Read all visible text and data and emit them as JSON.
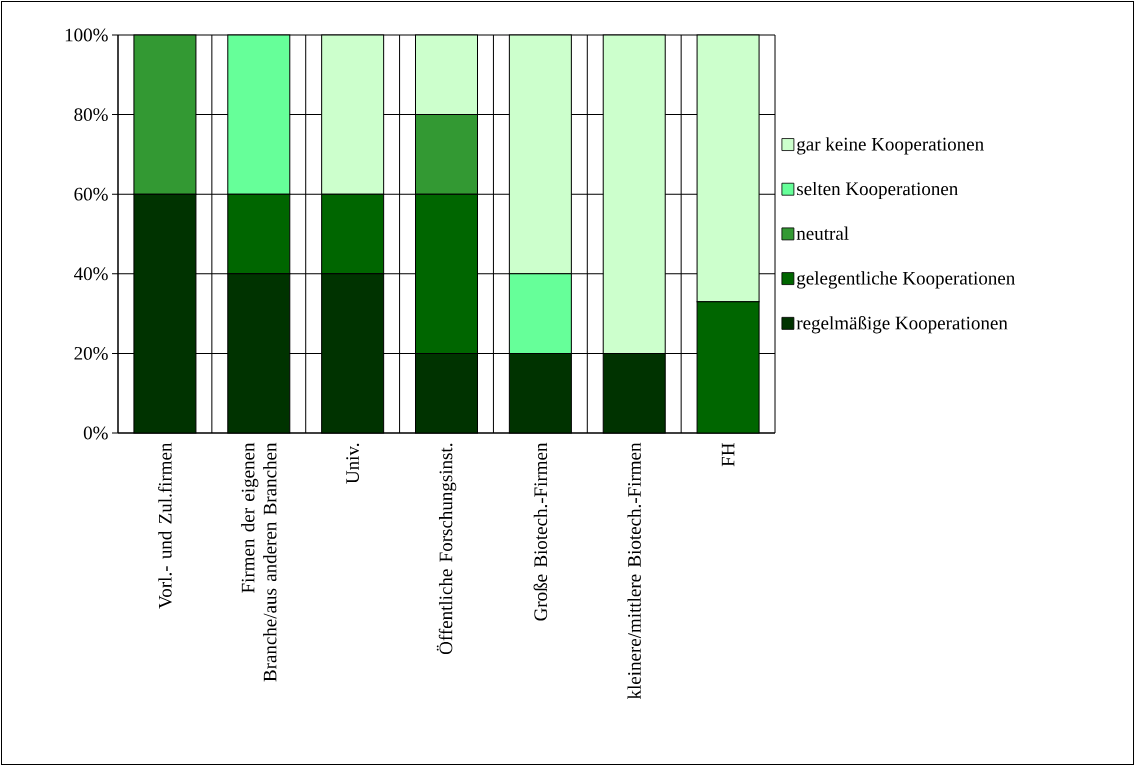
{
  "chart_data": {
    "type": "bar",
    "stacked": true,
    "categories": [
      "Vorl.- und Zul.firmen",
      "Firmen der eigenen Branche/aus anderen Branchen",
      "Univ.",
      "Öffentliche Forschungsinst.",
      "Große Biotech.-Firmen",
      "kleinere/mittlere Biotech.-Firmen",
      "FH"
    ],
    "series": [
      {
        "name": "regelmäßige Kooperationen",
        "color": "#003300",
        "values": [
          60,
          40,
          40,
          20,
          20,
          20,
          0
        ]
      },
      {
        "name": "gelegentliche Kooperationen",
        "color": "#006600",
        "values": [
          0,
          20,
          20,
          40,
          0,
          0,
          33
        ]
      },
      {
        "name": "neutral",
        "color": "#339933",
        "values": [
          40,
          0,
          0,
          20,
          0,
          0,
          0
        ]
      },
      {
        "name": "selten Kooperationen",
        "color": "#66ff99",
        "values": [
          0,
          40,
          0,
          0,
          20,
          0,
          0
        ]
      },
      {
        "name": "gar keine Kooperationen",
        "color": "#ccffcc",
        "values": [
          0,
          0,
          40,
          20,
          60,
          80,
          67
        ]
      }
    ],
    "ylim": [
      0,
      100
    ],
    "yticks": [
      {
        "value": 0,
        "label": "0%"
      },
      {
        "value": 20,
        "label": "20%"
      },
      {
        "value": 40,
        "label": "40%"
      },
      {
        "value": 60,
        "label": "60%"
      },
      {
        "value": 80,
        "label": "80%"
      },
      {
        "value": 100,
        "label": "100%"
      }
    ],
    "grid": true,
    "legend": "right"
  }
}
